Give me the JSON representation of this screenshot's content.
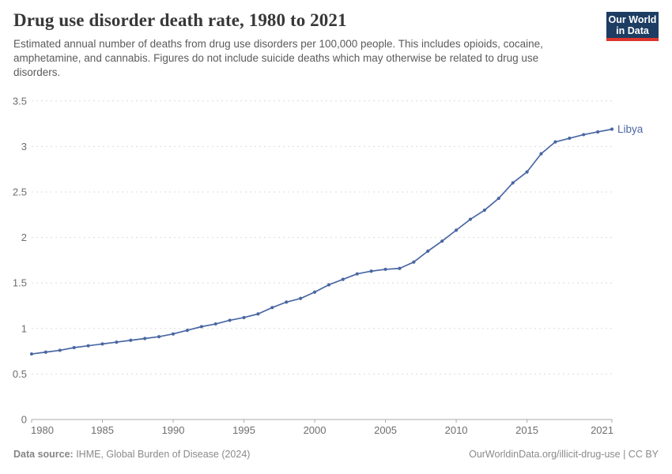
{
  "header": {
    "title": "Drug use disorder death rate, 1980 to 2021",
    "subtitle": "Estimated annual number of deaths from drug use disorders per 100,000 people. This includes opioids, cocaine, amphetamine, and cannabis. Figures do not include suicide deaths which may otherwise be related to drug use disorders.",
    "logo": {
      "line1": "Our World",
      "line2": "in Data"
    }
  },
  "chart_data": {
    "type": "line",
    "title": "Drug use disorder death rate, 1980 to 2021",
    "xlabel": "",
    "ylabel": "",
    "xlim": [
      1980,
      2021
    ],
    "ylim": [
      0,
      3.5
    ],
    "x_ticks": [
      1980,
      1985,
      1990,
      1995,
      2000,
      2005,
      2010,
      2015,
      2021
    ],
    "y_ticks": [
      0,
      0.5,
      1,
      1.5,
      2,
      2.5,
      3,
      3.5
    ],
    "grid": "horizontal dashed",
    "legend_position": "end-of-line label",
    "x": [
      1980,
      1981,
      1982,
      1983,
      1984,
      1985,
      1986,
      1987,
      1988,
      1989,
      1990,
      1991,
      1992,
      1993,
      1994,
      1995,
      1996,
      1997,
      1998,
      1999,
      2000,
      2001,
      2002,
      2003,
      2004,
      2005,
      2006,
      2007,
      2008,
      2009,
      2010,
      2011,
      2012,
      2013,
      2014,
      2015,
      2016,
      2017,
      2018,
      2019,
      2020,
      2021
    ],
    "series": [
      {
        "name": "Libya",
        "color": "#4a67a3",
        "values": [
          0.72,
          0.74,
          0.76,
          0.79,
          0.81,
          0.83,
          0.85,
          0.87,
          0.89,
          0.91,
          0.94,
          0.98,
          1.02,
          1.05,
          1.09,
          1.12,
          1.16,
          1.23,
          1.29,
          1.33,
          1.4,
          1.48,
          1.54,
          1.6,
          1.63,
          1.65,
          1.66,
          1.73,
          1.85,
          1.96,
          2.08,
          2.2,
          2.3,
          2.43,
          2.6,
          2.72,
          2.92,
          3.05,
          3.09,
          3.13,
          3.16,
          3.19
        ]
      }
    ]
  },
  "footer": {
    "datasource_label": "Data source:",
    "datasource_text": " IHME, Global Burden of Disease (2024)",
    "link_text": "OurWorldinData.org/illicit-drug-use | CC BY"
  },
  "colors": {
    "line": "#4a67a3",
    "grid": "#dcdcdc",
    "axis": "#a8a8a8",
    "tick_text": "#6e6e6e",
    "title_text": "#383838",
    "subtitle_text": "#5b5b5b",
    "footer_text": "#8a8a8a",
    "logo_bg": "#1d3d63",
    "logo_bar": "#dc352b"
  }
}
